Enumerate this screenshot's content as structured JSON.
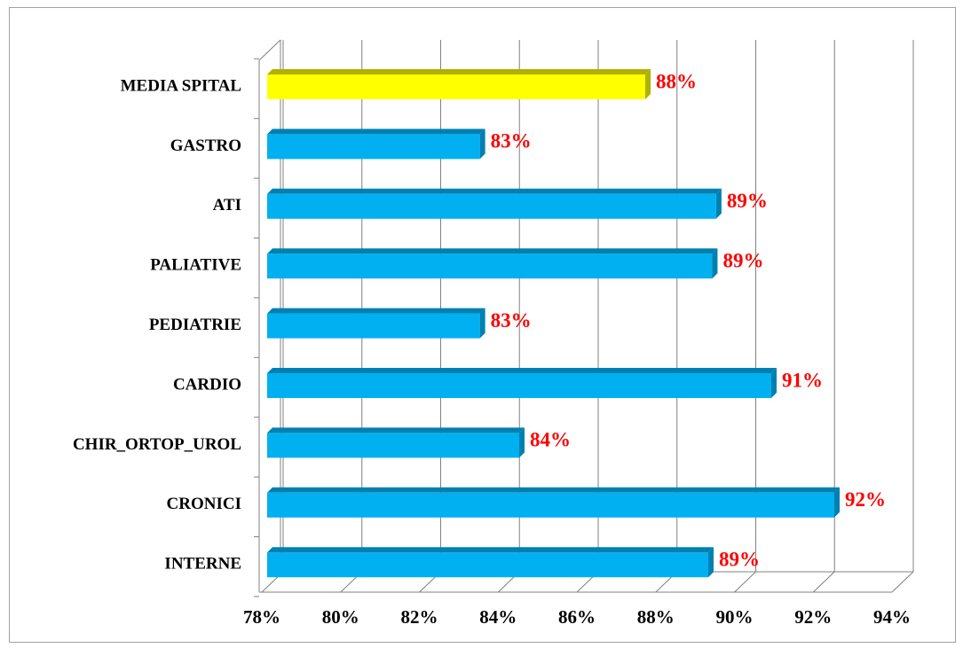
{
  "chart_data": {
    "type": "bar3d",
    "categories": [
      "MEDIA SPITAL",
      "GASTRO",
      "ATI",
      "PALIATIVE",
      "PEDIATRIE",
      "CARDIO",
      "CHIR_ORTOP_UROL",
      "CRONICI",
      "INTERNE"
    ],
    "series": [
      {
        "values": [
          87.6,
          83.4,
          89.4,
          89.3,
          83.4,
          90.8,
          84.4,
          92.4,
          89.2
        ],
        "value_labels": [
          "88%",
          "83%",
          "89%",
          "89%",
          "83%",
          "91%",
          "84%",
          "92%",
          "89%"
        ],
        "colors": [
          "#ffff00",
          "#00b0f0",
          "#00b0f0",
          "#00b0f0",
          "#00b0f0",
          "#00b0f0",
          "#00b0f0",
          "#00b0f0",
          "#00b0f0"
        ]
      }
    ],
    "xlim": [
      78,
      94
    ],
    "xticks": [
      {
        "value": 78,
        "label": "78%"
      },
      {
        "value": 80,
        "label": "80%"
      },
      {
        "value": 82,
        "label": "82%"
      },
      {
        "value": 84,
        "label": "84%"
      },
      {
        "value": 86,
        "label": "86%"
      },
      {
        "value": 88,
        "label": "88%"
      },
      {
        "value": 90,
        "label": "90%"
      },
      {
        "value": 92,
        "label": "92%"
      },
      {
        "value": 94,
        "label": "94%"
      }
    ],
    "grid": true
  }
}
